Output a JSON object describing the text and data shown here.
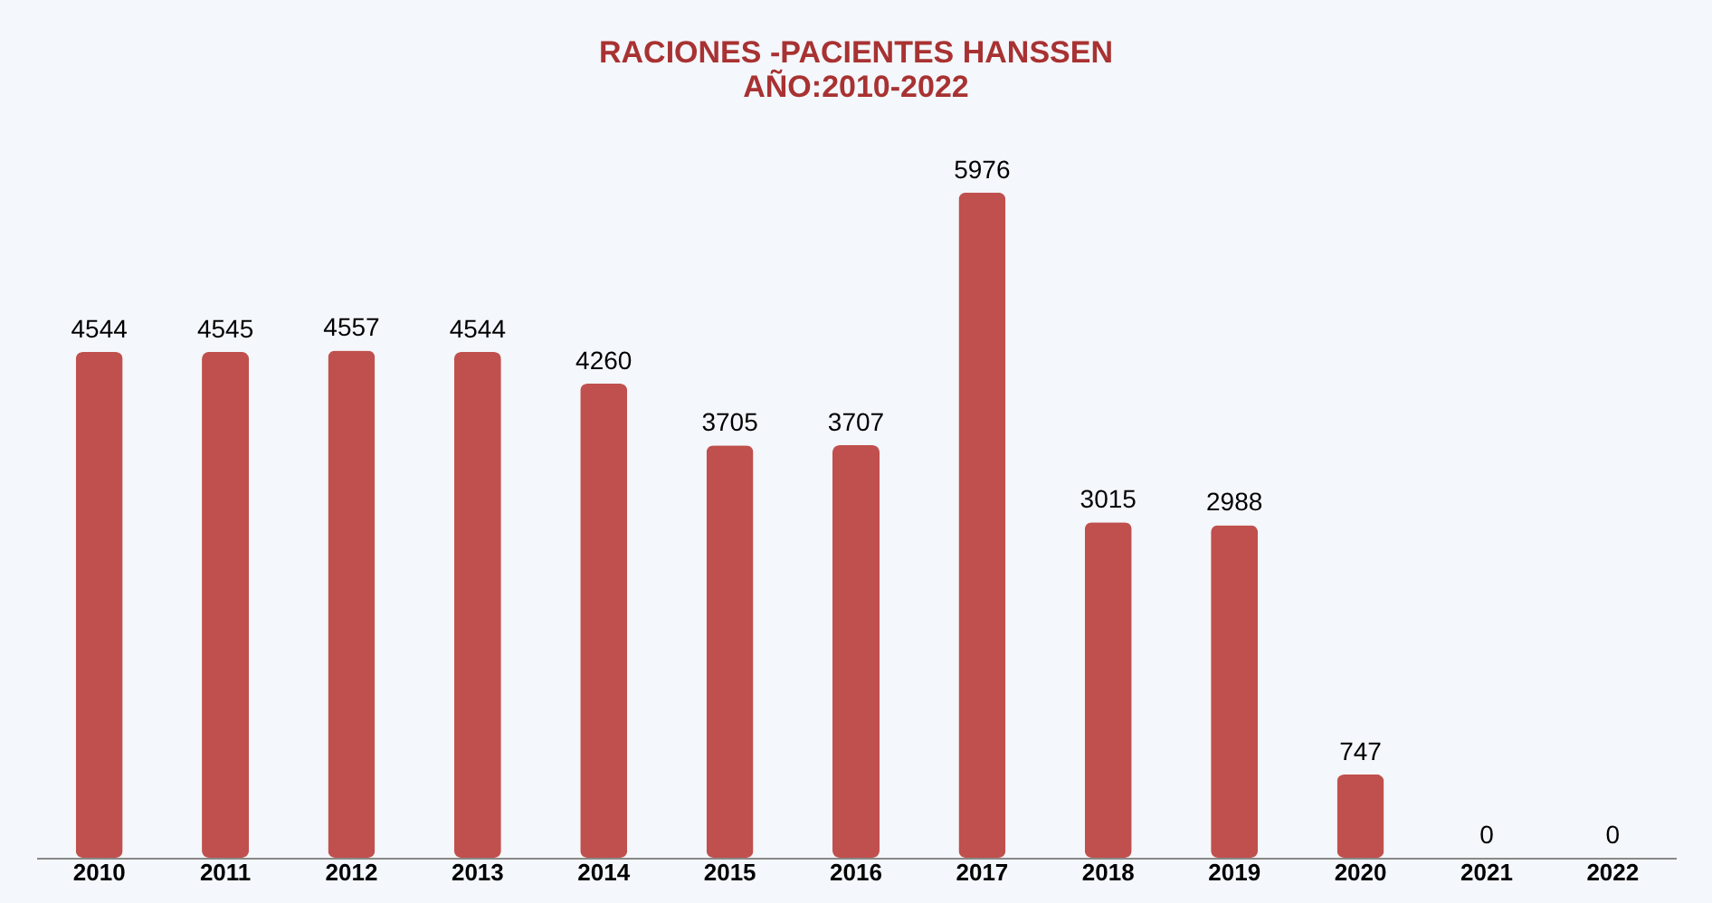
{
  "chart_data": {
    "type": "bar",
    "title": "RACIONES -PACIENTES HANSSEN\nAÑO:2010-2022",
    "categories": [
      "2010",
      "2011",
      "2012",
      "2013",
      "2014",
      "2015",
      "2016",
      "2017",
      "2018",
      "2019",
      "2020",
      "2021",
      "2022"
    ],
    "values": [
      4544,
      4545,
      4557,
      4544,
      4260,
      3705,
      3707,
      5976,
      3015,
      2988,
      747,
      0,
      0
    ],
    "color": "#c0504d",
    "data_labels": true
  }
}
